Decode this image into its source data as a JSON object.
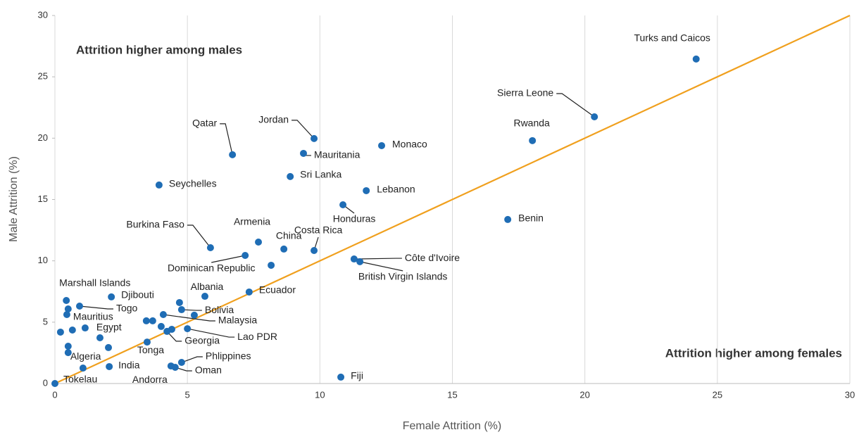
{
  "chart_data": {
    "type": "scatter",
    "xlabel": "Female Attrition (%)",
    "ylabel": "Male Attrition (%)",
    "annotations": [
      "Attrition higher among males",
      "Attrition higher among females"
    ],
    "xlim": [
      0,
      30
    ],
    "ylim": [
      0,
      30
    ],
    "xticks": [
      0,
      5,
      10,
      15,
      20,
      25,
      30
    ],
    "yticks": [
      0,
      5,
      10,
      15,
      20,
      25,
      30
    ],
    "grid": "x",
    "color": "#1f6db5",
    "reference_line": {
      "x": [
        0,
        30
      ],
      "y": [
        0,
        30
      ],
      "color": "#f0a01e"
    },
    "labels": [
      "Turks and Caicos",
      "Sierra Leone",
      "Rwanda",
      "Benin",
      "Jordan",
      "Monaco",
      "Mauritania",
      "Qatar",
      "Sri Lanka",
      "Lebanon",
      "Seychelles",
      "Honduras",
      "Burkina Faso",
      "Armenia",
      "China",
      "Costa Rica",
      "Dominican Republic",
      "Côte d'Ivoire",
      "British Virgin Islands",
      null,
      "Ecuador",
      "Albania",
      "Djibouti",
      "Marshall Islands",
      null,
      "Togo",
      null,
      "Bolivia",
      null,
      "Malaysia",
      "Mauritius",
      null,
      null,
      "Lao PDR",
      null,
      null,
      "Georgia",
      "Egypt",
      null,
      null,
      null,
      "Tonga",
      null,
      null,
      "Algeria",
      "Phlippines",
      "Andorra",
      "Oman",
      "India",
      null,
      "Fiji",
      "Tokelau"
    ],
    "x": [
      24.2,
      20.36,
      18.02,
      17.09,
      9.78,
      12.33,
      9.38,
      6.7,
      8.88,
      11.75,
      3.93,
      10.87,
      5.87,
      7.68,
      8.64,
      9.78,
      7.18,
      11.29,
      11.51,
      8.16,
      7.33,
      5.66,
      2.13,
      0.43,
      0.5,
      0.93,
      4.7,
      4.78,
      5.26,
      4.09,
      0.45,
      3.45,
      3.69,
      5.0,
      4.01,
      4.41,
      4.23,
      1.14,
      0.66,
      0.21,
      1.7,
      3.48,
      0.5,
      2.02,
      0.5,
      4.78,
      4.38,
      4.54,
      2.05,
      1.06,
      10.79,
      0
    ],
    "y": [
      26.45,
      21.74,
      19.8,
      13.37,
      19.97,
      19.39,
      18.76,
      18.65,
      16.87,
      15.72,
      16.18,
      14.57,
      11.07,
      11.53,
      10.96,
      10.84,
      10.44,
      10.15,
      9.93,
      9.64,
      7.46,
      7.11,
      7.06,
      6.77,
      6.08,
      6.31,
      6.6,
      6.02,
      5.57,
      5.62,
      5.62,
      5.11,
      5.11,
      4.47,
      4.65,
      4.42,
      4.25,
      4.53,
      4.36,
      4.19,
      3.73,
      3.38,
      3.04,
      2.93,
      2.52,
      1.72,
      1.43,
      1.32,
      1.38,
      1.26,
      0.52,
      0
    ]
  }
}
